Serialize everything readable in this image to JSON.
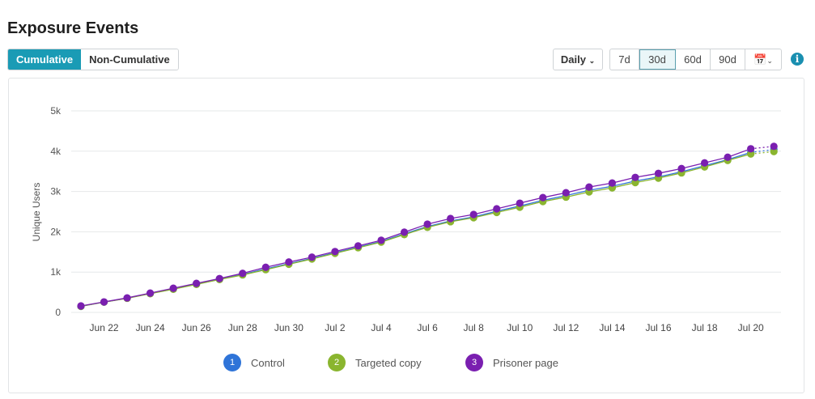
{
  "header": {
    "title": "Exposure Events"
  },
  "toggle": {
    "cumulative": "Cumulative",
    "non_cumulative": "Non-Cumulative",
    "active": "Cumulative"
  },
  "controls": {
    "interval": "Daily",
    "ranges": [
      "7d",
      "30d",
      "60d",
      "90d"
    ],
    "selected_range": "30d",
    "info": "i"
  },
  "chart_data": {
    "type": "line",
    "title": "Exposure Events",
    "ylabel": "Unique Users",
    "ylim": [
      0,
      5000
    ],
    "yticks": [
      "0",
      "1k",
      "2k",
      "3k",
      "4k",
      "5k"
    ],
    "xticks": [
      "Jun 22",
      "Jun 24",
      "Jun 26",
      "Jun 28",
      "Jun 30",
      "Jul 2",
      "Jul 4",
      "Jul 6",
      "Jul 8",
      "Jul 10",
      "Jul 12",
      "Jul 14",
      "Jul 16",
      "Jul 18",
      "Jul 20"
    ],
    "x_start": "Jun 21",
    "x_end": "Jul 21",
    "last_point_partial": true,
    "series": [
      {
        "name": "Control",
        "index": "1",
        "color": "#2f74d8",
        "values": [
          150,
          255,
          355,
          470,
          580,
          700,
          820,
          940,
          1080,
          1210,
          1340,
          1480,
          1620,
          1760,
          1950,
          2130,
          2270,
          2370,
          2510,
          2640,
          2780,
          2900,
          3030,
          3130,
          3260,
          3360,
          3490,
          3640,
          3790,
          3970,
          4040
        ]
      },
      {
        "name": "Targeted copy",
        "index": "2",
        "color": "#8ab52f",
        "values": [
          150,
          255,
          350,
          465,
          575,
          695,
          815,
          930,
          1060,
          1195,
          1325,
          1465,
          1605,
          1745,
          1930,
          2110,
          2250,
          2350,
          2480,
          2610,
          2750,
          2860,
          2990,
          3090,
          3220,
          3330,
          3460,
          3610,
          3770,
          3930,
          3990
        ]
      },
      {
        "name": "Prisoner page",
        "index": "3",
        "color": "#7a1fb0",
        "values": [
          160,
          260,
          360,
          480,
          600,
          720,
          840,
          970,
          1120,
          1250,
          1370,
          1510,
          1650,
          1790,
          1990,
          2190,
          2330,
          2430,
          2570,
          2710,
          2850,
          2970,
          3110,
          3210,
          3350,
          3450,
          3570,
          3710,
          3850,
          4060,
          4120
        ]
      }
    ]
  }
}
